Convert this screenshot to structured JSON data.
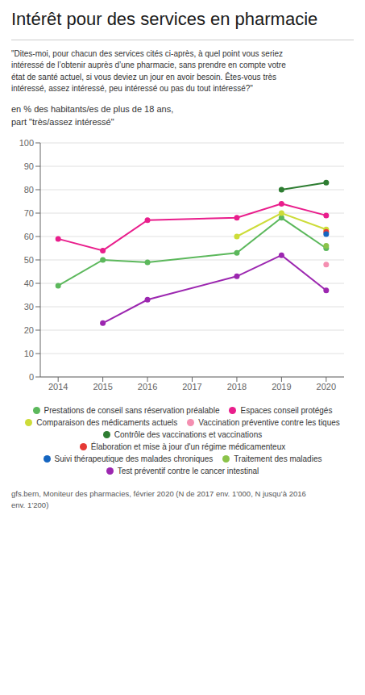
{
  "chart_data": {
    "type": "line",
    "title": "Intérêt pour des services en pharmacie",
    "subtitle": [
      "\"Dites-moi, pour chacun des services cités ci-après, à quel point vous seriez\nintéressé de l’obtenir auprès d’une pharmacie, sans prendre en compte votre\nétat de santé actuel, si vous deviez un jour en avoir besoin. Êtes-vous très\nintéressé, assez intéressé, peu intéressé ou pas du tout intéressé?\"",
      "en % des habitants/es de plus de 18 ans,\npart \"très/assez intéressé\""
    ],
    "annotations": [
      "gfs.bern, Moniteur des pharmacies, février 2020 (N de 2017 env. 1’000, N jusqu’à 2016\nenv. 1’200)"
    ],
    "x": [
      2014,
      2015,
      2016,
      2017,
      2018,
      2019,
      2020
    ],
    "series": [
      {
        "name": "Prestations de conseil sans réservation préalable",
        "color": "#5cb85c",
        "values": [
          39,
          50,
          49,
          null,
          53,
          68,
          55
        ]
      },
      {
        "name": "Espaces conseil protégés",
        "color": "#e91e8c",
        "values": [
          59,
          54,
          67,
          null,
          68,
          74,
          69
        ]
      },
      {
        "name": "Comparaison des médicaments actuels",
        "color": "#cddc39",
        "values": [
          null,
          null,
          null,
          null,
          60,
          70,
          63
        ]
      },
      {
        "name": "Vaccination préventive contre les tiques",
        "color": "#f48fb1",
        "values": [
          null,
          null,
          null,
          null,
          null,
          null,
          48
        ]
      },
      {
        "name": "Contrôle des vaccinations et vaccinations",
        "color": "#2e7d32",
        "values": [
          null,
          null,
          null,
          null,
          null,
          80,
          83
        ]
      },
      {
        "name": "Élaboration et mise à jour d'un régime médicamenteux",
        "color": "#e53935",
        "values": [
          null,
          null,
          null,
          null,
          null,
          null,
          62
        ]
      },
      {
        "name": "Suivi thérapeutique des malades chroniques",
        "color": "#1565c0",
        "values": [
          null,
          null,
          null,
          null,
          null,
          null,
          61
        ]
      },
      {
        "name": "Traitement des maladies",
        "color": "#8bc34a",
        "values": [
          null,
          null,
          null,
          null,
          null,
          null,
          56
        ]
      },
      {
        "name": "Test préventif contre le cancer intestinal",
        "color": "#9c27b0",
        "values": [
          null,
          23,
          33,
          null,
          43,
          52,
          37
        ]
      }
    ],
    "xlim": [
      2013.6,
      2020.4
    ],
    "xticks": [
      2014,
      2015,
      2016,
      2017,
      2018,
      2019,
      2020
    ],
    "ylim": [
      0,
      100
    ],
    "yticks": [
      0,
      10,
      20,
      30,
      40,
      50,
      60,
      70,
      80,
      90,
      100
    ],
    "grid": true,
    "legend": "bottom",
    "marker": "circle"
  }
}
